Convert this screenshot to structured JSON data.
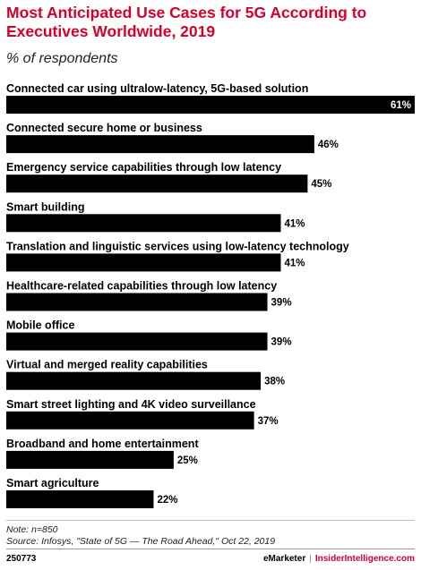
{
  "header": {
    "title": "Most Anticipated Use Cases for 5G According to Executives Worldwide, 2019",
    "subtitle": "% of respondents"
  },
  "colors": {
    "bar": "#000000",
    "title": "#d5002b",
    "value_inside": "#ffffff",
    "value_outside": "#000000"
  },
  "chart_data": {
    "type": "bar",
    "orientation": "horizontal",
    "title": "Most Anticipated Use Cases for 5G According to Executives Worldwide, 2019",
    "subtitle": "% of respondents",
    "categories": [
      "Connected car using ultralow-latency, 5G-based solution",
      "Connected secure home or business",
      "Emergency service capabilities through low latency",
      "Smart building",
      "Translation and linguistic services using low-latency technology",
      "Healthcare-related capabilities through low latency",
      "Mobile office",
      "Virtual and merged reality capabilities",
      "Smart street lighting and 4K video surveillance",
      "Broadband and home entertainment",
      "Smart agriculture"
    ],
    "values": [
      61,
      46,
      45,
      41,
      41,
      39,
      39,
      38,
      37,
      25,
      22
    ],
    "value_labels": [
      "61%",
      "46%",
      "45%",
      "41%",
      "41%",
      "39%",
      "39%",
      "38%",
      "37%",
      "25%",
      "22%"
    ],
    "xlim": [
      0,
      61
    ],
    "grid": false
  },
  "footer": {
    "note": "Note: n=850",
    "source": "Source: Infosys, \"State of 5G — The Road Ahead,\" Oct 22, 2019",
    "chart_id": "250773",
    "brand_left": "eMarketer",
    "brand_sep": "|",
    "brand_right": "InsiderIntelligence.com"
  }
}
